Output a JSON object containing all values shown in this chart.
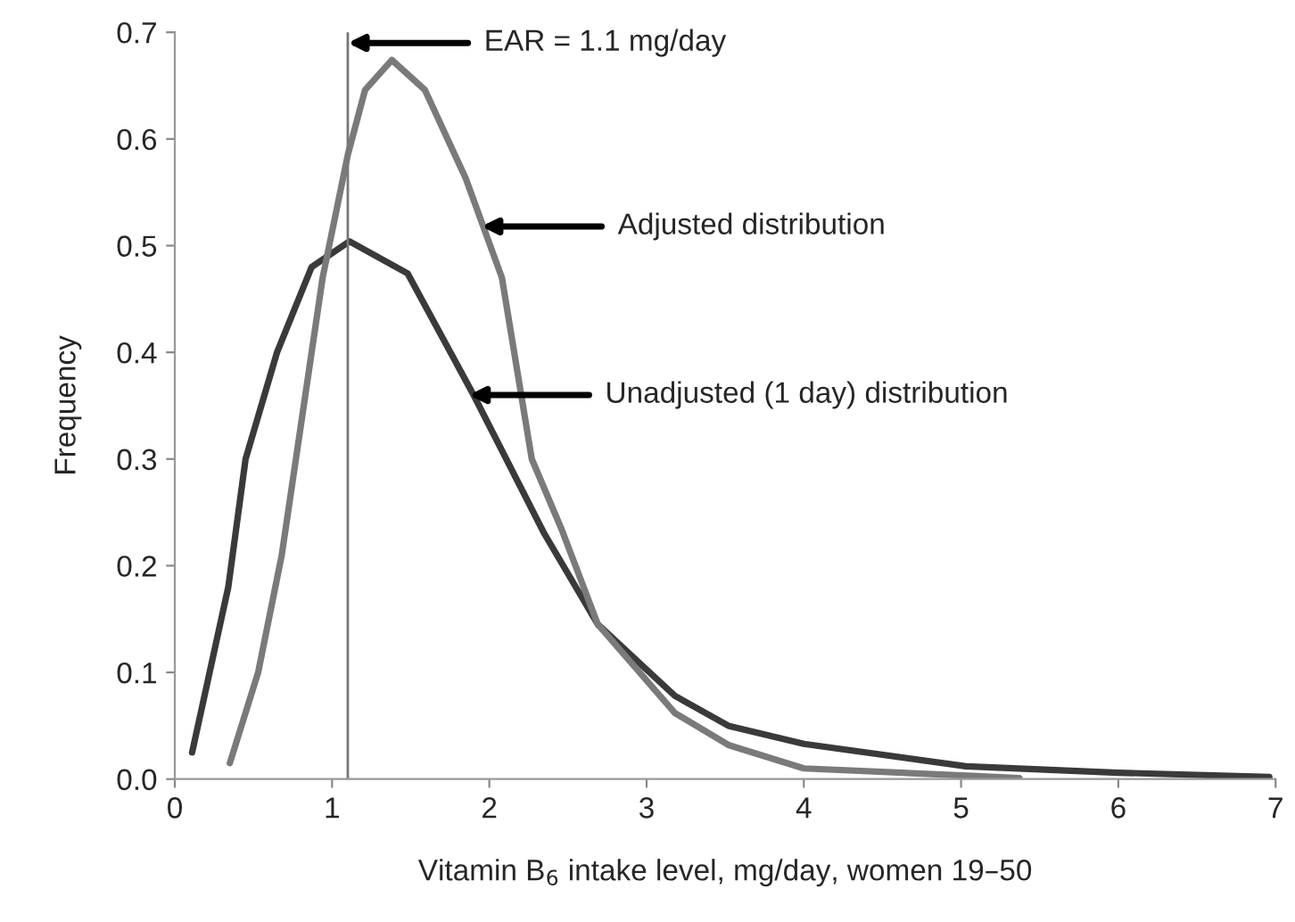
{
  "chart_data": {
    "type": "line",
    "xlabel": "Vitamin B$_{6}$ intake level, mg/day, women 19–50",
    "ylabel": "Frequency",
    "xlim": [
      0,
      7
    ],
    "xticks": [
      0,
      1,
      2,
      3,
      4,
      5,
      6,
      7
    ],
    "ylim": [
      0,
      0.7
    ],
    "yticks": [
      {
        "value": 0,
        "label": "0.0"
      },
      {
        "value": 0.1,
        "label": "0.1"
      },
      {
        "value": 0.2,
        "label": "0.2"
      },
      {
        "value": 0.3,
        "label": "0.3"
      },
      {
        "value": 0.4,
        "label": "0.4"
      },
      {
        "value": 0.5,
        "label": "0.5"
      },
      {
        "value": 0.6,
        "label": "0.6"
      },
      {
        "value": 0.7,
        "label": "0.7"
      }
    ],
    "grid": false,
    "legend": false,
    "marker": "none",
    "line_style": "solid",
    "series": [
      {
        "color": "#3a3a3a",
        "x": [
          0.11,
          0.34,
          0.45,
          0.65,
          0.87,
          1.11,
          1.48,
          1.9,
          2.35,
          2.69,
          3.18,
          3.52,
          4.0,
          5.03,
          6.0,
          6.96
        ],
        "values": [
          0.025,
          0.18,
          0.3,
          0.4,
          0.48,
          0.504,
          0.474,
          0.36,
          0.23,
          0.145,
          0.078,
          0.05,
          0.033,
          0.012,
          0.006,
          0.002
        ]
      },
      {
        "color": "#7a7a7a",
        "x": [
          0.35,
          0.53,
          0.68,
          0.77,
          0.94,
          1.1,
          1.21,
          1.38,
          1.59,
          1.85,
          2.08,
          2.27,
          2.46,
          2.69,
          3.18,
          3.52,
          4.0,
          5.07,
          5.37
        ],
        "values": [
          0.015,
          0.1,
          0.21,
          0.3,
          0.47,
          0.585,
          0.646,
          0.674,
          0.646,
          0.563,
          0.47,
          0.3,
          0.234,
          0.145,
          0.062,
          0.032,
          0.01,
          0.003,
          0.001
        ]
      }
    ],
    "ref_lines": [
      {
        "axis": "x",
        "value": 1.1,
        "color": "#777777",
        "line_style": "solid"
      }
    ],
    "annotations": [
      {
        "text": "EAR = 1.1 mg/day",
        "x": 1.1,
        "y": 0.69
      },
      {
        "text": "Adjusted distribution",
        "x": 1.95,
        "y": 0.518
      },
      {
        "text": "Unadjusted (1 day) distribution",
        "x": 1.87,
        "y": 0.36
      }
    ]
  }
}
